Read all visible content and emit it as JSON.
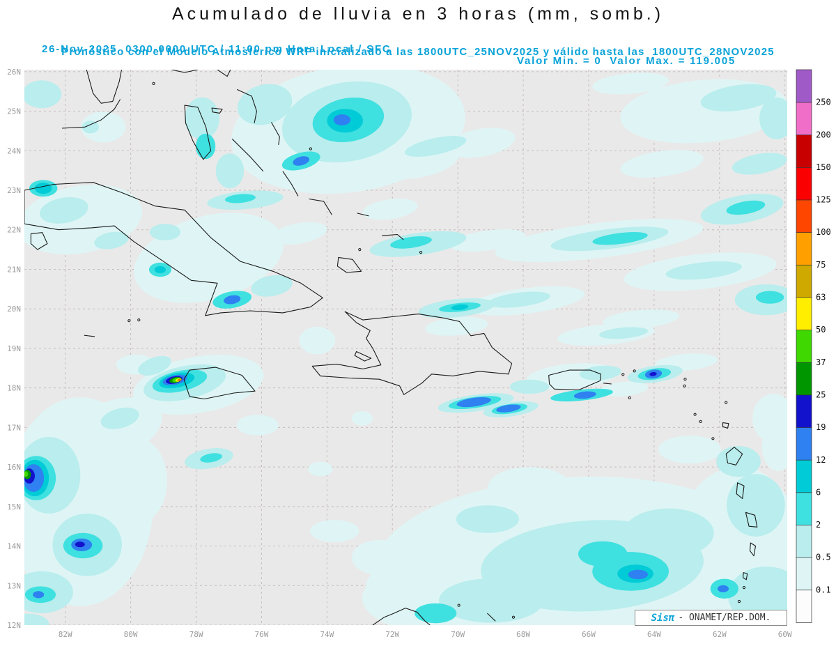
{
  "header": {
    "title": "Acumulado de lluvia en 3 horas (mm, somb.)",
    "line2_left": "26-Nov-2025  0300-0000 UTC / 11:00 pm Hora Local / SFC",
    "line2_right": "Valor Min. = 0  Valor Max. = 119.005",
    "line3": "Pronóstico con el Modelo Atmosferico WRF inicializado a las 1800UTC_25NOV2025 y válido hasta las  1800UTC_28NOV2025"
  },
  "attribution": {
    "brand": "Sisπ",
    "text": "- ONAMET/REP.DOM."
  },
  "colors": {
    "header_accent": "#0aa3d8",
    "title_color": "#141414",
    "axis_label": "#9b9b9b",
    "map_bg": "#e9e9e9",
    "grid": "#c8bcbc",
    "coast": "#1a1a1a"
  },
  "map": {
    "lat_labels": [
      "26N",
      "25N",
      "24N",
      "23N",
      "22N",
      "21N",
      "20N",
      "19N",
      "18N",
      "17N",
      "16N",
      "15N",
      "14N",
      "13N",
      "12N"
    ],
    "lat_values": [
      26,
      25,
      24,
      23,
      22,
      21,
      20,
      19,
      18,
      17,
      16,
      15,
      14,
      13,
      12
    ],
    "lon_labels": [
      "82W",
      "80W",
      "78W",
      "76W",
      "74W",
      "72W",
      "70W",
      "68W",
      "66W",
      "64W",
      "62W",
      "60W"
    ],
    "lon_values": [
      -82,
      -80,
      -78,
      -76,
      -74,
      -72,
      -70,
      -68,
      -66,
      -64,
      -62,
      -60
    ]
  },
  "legend": {
    "units": "mm",
    "tick_labels": [
      "250",
      "200",
      "150",
      "125",
      "100",
      "75",
      "63",
      "50",
      "37",
      "25",
      "19",
      "12",
      "6",
      "2",
      "0.5",
      "0.1"
    ],
    "levels": [
      0.1,
      0.5,
      2,
      6,
      12,
      19,
      25,
      37,
      50,
      63,
      75,
      100,
      125,
      150,
      200,
      250
    ],
    "colors_bottom_to_top": [
      "#fcfcfc",
      "#dff5f5",
      "#baeded",
      "#3fe0e0",
      "#00cbd6",
      "#2f80f0",
      "#1212cc",
      "#009600",
      "#3fd800",
      "#ffee00",
      "#cfa800",
      "#ffa000",
      "#ff4600",
      "#fa0000",
      "#c80000",
      "#f06ec8",
      "#a05ac8"
    ]
  },
  "chart_data": {
    "type": "heatmap",
    "title": "Acumulado de lluvia en 3 horas (mm, somb.)",
    "value_min": 0,
    "value_max": 119.005,
    "units": "mm",
    "extent": {
      "lat": [
        12,
        26
      ],
      "lon": [
        -83.25,
        -60
      ]
    },
    "precip_areas": [
      [
        -73.35,
        24.55,
        3.6,
        1.6,
        -8,
        0.1
      ],
      [
        -73.39,
        24.73,
        2.0,
        1.0,
        -10,
        0.5
      ],
      [
        -73.35,
        24.78,
        1.1,
        0.55,
        -10,
        2
      ],
      [
        -73.45,
        24.76,
        0.55,
        0.3,
        0,
        6
      ],
      [
        -73.54,
        24.78,
        0.26,
        0.14,
        0,
        12
      ],
      [
        -75.9,
        25.17,
        0.85,
        0.5,
        -15,
        0.5
      ],
      [
        -71.22,
        23.76,
        1.28,
        0.44,
        -10,
        0.1
      ],
      [
        -74.79,
        23.74,
        0.6,
        0.21,
        -15,
        2
      ],
      [
        -74.79,
        23.74,
        0.26,
        0.11,
        -15,
        12
      ],
      [
        -62.48,
        25.0,
        2.56,
        0.79,
        -5,
        0.1
      ],
      [
        -61.42,
        25.34,
        1.17,
        0.32,
        -8,
        0.5
      ],
      [
        -60.78,
        23.67,
        0.85,
        0.25,
        -10,
        0.5
      ],
      [
        -63.76,
        23.67,
        1.28,
        0.32,
        -8,
        0.1
      ],
      [
        -64.72,
        25.7,
        1.17,
        0.26,
        -5,
        0.1
      ],
      [
        -60.25,
        24.82,
        0.53,
        0.53,
        0,
        0.5
      ],
      [
        -82.72,
        25.43,
        0.6,
        0.35,
        0,
        0.5
      ],
      [
        -80.84,
        24.6,
        0.68,
        0.39,
        0,
        0.1
      ],
      [
        -81.23,
        24.6,
        0.26,
        0.16,
        0,
        0.5
      ],
      [
        -81.55,
        22.26,
        1.92,
        0.85,
        -10,
        0.1
      ],
      [
        -82.04,
        22.49,
        0.75,
        0.32,
        -10,
        0.5
      ],
      [
        -82.67,
        23.05,
        0.43,
        0.21,
        0,
        2
      ],
      [
        -82.67,
        23.05,
        0.26,
        0.14,
        0,
        6
      ],
      [
        -80.59,
        21.73,
        0.53,
        0.21,
        -10,
        0.5
      ],
      [
        -77.61,
        21.29,
        2.34,
        1.06,
        -15,
        0.1
      ],
      [
        -78.95,
        21.94,
        0.47,
        0.21,
        0,
        0.5
      ],
      [
        -79.1,
        20.99,
        0.34,
        0.18,
        0,
        2
      ],
      [
        -79.1,
        20.99,
        0.17,
        0.09,
        0,
        6
      ],
      [
        -76.9,
        20.23,
        0.6,
        0.21,
        -10,
        2
      ],
      [
        -76.9,
        20.23,
        0.26,
        0.11,
        -10,
        12
      ],
      [
        -75.69,
        20.58,
        0.64,
        0.26,
        -10,
        0.5
      ],
      [
        -76.5,
        22.75,
        1.17,
        0.23,
        -5,
        0.5
      ],
      [
        -76.65,
        22.79,
        0.47,
        0.11,
        -5,
        2
      ],
      [
        -74.84,
        21.91,
        0.85,
        0.26,
        -10,
        0.1
      ],
      [
        -77.82,
        24.82,
        0.53,
        0.53,
        0,
        0.5
      ],
      [
        -77.71,
        24.11,
        0.3,
        0.32,
        0,
        2
      ],
      [
        -76.97,
        23.49,
        0.43,
        0.44,
        0,
        0.5
      ],
      [
        -71.22,
        21.64,
        1.49,
        0.28,
        -8,
        0.5
      ],
      [
        -71.43,
        21.68,
        0.64,
        0.14,
        -8,
        2
      ],
      [
        -69.3,
        24.2,
        1.06,
        0.35,
        -10,
        0.1
      ],
      [
        -70.68,
        24.11,
        0.96,
        0.21,
        -12,
        0.5
      ],
      [
        -72.07,
        22.52,
        0.85,
        0.25,
        -8,
        0.1
      ],
      [
        -69.09,
        21.73,
        1.17,
        0.25,
        -8,
        0.1
      ],
      [
        -65.68,
        21.73,
        3.2,
        0.44,
        -7,
        0.1
      ],
      [
        -65.36,
        21.77,
        1.81,
        0.25,
        -7,
        0.5
      ],
      [
        -65.04,
        21.78,
        0.85,
        0.14,
        -7,
        2
      ],
      [
        -62.59,
        20.94,
        2.34,
        0.44,
        -6,
        0.1
      ],
      [
        -62.48,
        20.97,
        1.17,
        0.21,
        -6,
        0.5
      ],
      [
        -67.92,
        20.2,
        1.81,
        0.32,
        -7,
        0.1
      ],
      [
        -68.13,
        20.23,
        0.96,
        0.18,
        -7,
        0.5
      ],
      [
        -61.31,
        22.52,
        1.28,
        0.35,
        -10,
        0.5
      ],
      [
        -61.2,
        22.56,
        0.6,
        0.16,
        -10,
        2
      ],
      [
        -60.57,
        20.23,
        0.96,
        0.39,
        0,
        0.5
      ],
      [
        -60.46,
        20.29,
        0.43,
        0.16,
        0,
        2
      ],
      [
        -64.4,
        19.74,
        1.17,
        0.23,
        -5,
        0.1
      ],
      [
        -70.04,
        20.02,
        1.17,
        0.23,
        -6,
        0.5
      ],
      [
        -69.94,
        20.04,
        0.64,
        0.11,
        -6,
        2
      ],
      [
        -69.94,
        20.04,
        0.26,
        0.07,
        -6,
        6
      ],
      [
        -65.47,
        19.35,
        1.49,
        0.26,
        -5,
        0.1
      ],
      [
        -64.93,
        19.39,
        0.75,
        0.14,
        -5,
        0.5
      ],
      [
        -63.02,
        18.65,
        0.96,
        0.21,
        -5,
        0.1
      ],
      [
        -74.3,
        19.2,
        0.55,
        0.35,
        0,
        0.1
      ],
      [
        -69.45,
        17.62,
        1.17,
        0.21,
        -8,
        0.5
      ],
      [
        -69.48,
        17.63,
        0.81,
        0.14,
        -8,
        2
      ],
      [
        -69.51,
        17.64,
        0.53,
        0.11,
        -8,
        12
      ],
      [
        -68.38,
        17.46,
        0.85,
        0.18,
        -8,
        0.5
      ],
      [
        -68.42,
        17.47,
        0.55,
        0.12,
        -8,
        2
      ],
      [
        -68.45,
        17.48,
        0.38,
        0.09,
        -8,
        12
      ],
      [
        -67.81,
        18.03,
        0.6,
        0.18,
        0,
        0.5
      ],
      [
        -70.04,
        19.56,
        0.96,
        0.23,
        -5,
        0.1
      ],
      [
        -66.53,
        18.29,
        1.38,
        0.32,
        -5,
        0.1
      ],
      [
        -65.64,
        18.38,
        0.64,
        0.18,
        -5,
        0.5
      ],
      [
        -63.97,
        18.35,
        0.85,
        0.21,
        -8,
        0.5
      ],
      [
        -63.99,
        18.35,
        0.51,
        0.14,
        -8,
        2
      ],
      [
        -64.02,
        18.35,
        0.26,
        0.11,
        -8,
        12
      ],
      [
        -64.03,
        18.35,
        0.11,
        0.05,
        -8,
        19
      ],
      [
        -66.21,
        17.82,
        0.96,
        0.14,
        -6,
        2
      ],
      [
        -66.11,
        17.82,
        0.34,
        0.09,
        -6,
        12
      ],
      [
        -64.93,
        17.97,
        0.75,
        0.18,
        -5,
        0.1
      ],
      [
        -77.93,
        18.08,
        2.02,
        0.71,
        -10,
        0.1
      ],
      [
        -78.35,
        18.13,
        1.28,
        0.42,
        -12,
        0.5
      ],
      [
        -78.5,
        18.17,
        0.85,
        0.26,
        -12,
        2
      ],
      [
        -78.59,
        18.19,
        0.55,
        0.18,
        -12,
        6
      ],
      [
        -78.65,
        18.2,
        0.38,
        0.12,
        -12,
        12
      ],
      [
        -78.67,
        18.2,
        0.26,
        0.09,
        -12,
        19
      ],
      [
        -78.63,
        18.2,
        0.19,
        0.07,
        -12,
        25
      ],
      [
        -78.59,
        18.2,
        0.14,
        0.053,
        -12,
        37
      ],
      [
        -78.54,
        18.2,
        0.096,
        0.039,
        -12,
        50
      ],
      [
        -78.52,
        18.2,
        0.064,
        0.028,
        -12,
        63
      ],
      [
        -78.5,
        18.2,
        0.036,
        0.019,
        -12,
        100
      ],
      [
        -79.27,
        18.56,
        0.53,
        0.21,
        -20,
        0.5
      ],
      [
        -79.84,
        18.59,
        0.6,
        0.25,
        0,
        0.1
      ],
      [
        -81.55,
        15.12,
        2.24,
        2.64,
        0,
        0.1
      ],
      [
        -80.48,
        16.97,
        1.49,
        0.71,
        -20,
        0.1
      ],
      [
        -79.74,
        15.65,
        0.85,
        1.06,
        0,
        0.1
      ],
      [
        -82.5,
        15.79,
        0.96,
        0.97,
        0,
        0.5
      ],
      [
        -81.33,
        14.03,
        1.06,
        0.79,
        0,
        0.5
      ],
      [
        -82.72,
        12.83,
        0.96,
        0.53,
        0,
        0.5
      ],
      [
        -80.33,
        17.23,
        0.6,
        0.25,
        -15,
        0.5
      ],
      [
        -82.89,
        15.72,
        0.6,
        0.56,
        0,
        2
      ],
      [
        -82.93,
        15.72,
        0.43,
        0.46,
        0,
        6
      ],
      [
        -82.97,
        15.72,
        0.32,
        0.35,
        0,
        12
      ],
      [
        -83.1,
        15.77,
        0.17,
        0.19,
        0,
        19
      ],
      [
        -83.16,
        15.81,
        0.11,
        0.12,
        0,
        25
      ],
      [
        -83.2,
        15.82,
        0.064,
        0.07,
        0,
        37
      ],
      [
        -81.46,
        14.01,
        0.6,
        0.32,
        0,
        2
      ],
      [
        -81.5,
        14.03,
        0.32,
        0.16,
        0,
        12
      ],
      [
        -81.55,
        14.04,
        0.15,
        0.07,
        0,
        19
      ],
      [
        -82.76,
        12.77,
        0.47,
        0.21,
        0,
        2
      ],
      [
        -82.82,
        12.77,
        0.17,
        0.09,
        0,
        12
      ],
      [
        -83.14,
        12.03,
        0.64,
        0.26,
        0,
        0.5
      ],
      [
        -66.53,
        13.71,
        5.96,
        2.03,
        -3,
        0.1
      ],
      [
        -61.42,
        13.89,
        1.92,
        2.12,
        0,
        0.1
      ],
      [
        -70.15,
        12.69,
        2.77,
        0.97,
        0,
        0.1
      ],
      [
        -65.89,
        13.5,
        3.41,
        1.15,
        -3,
        0.5
      ],
      [
        -63.55,
        14.33,
        1.38,
        0.62,
        0,
        0.5
      ],
      [
        -68.98,
        12.62,
        1.6,
        0.56,
        0,
        0.5
      ],
      [
        -60.89,
        15.03,
        0.89,
        0.79,
        0,
        0.5
      ],
      [
        -60.57,
        12.74,
        1.17,
        0.74,
        0,
        0.5
      ],
      [
        -64.72,
        13.36,
        1.17,
        0.49,
        0,
        2
      ],
      [
        -65.57,
        13.8,
        0.75,
        0.32,
        0,
        2
      ],
      [
        -64.57,
        13.3,
        0.55,
        0.23,
        0,
        6
      ],
      [
        -64.49,
        13.28,
        0.3,
        0.12,
        0,
        12
      ],
      [
        -70.68,
        12.3,
        0.64,
        0.25,
        0,
        2
      ],
      [
        -61.85,
        12.92,
        0.43,
        0.25,
        0,
        2
      ],
      [
        -61.89,
        12.92,
        0.17,
        0.09,
        0,
        12
      ],
      [
        -67.81,
        15.47,
        1.28,
        0.53,
        0,
        0.1
      ],
      [
        -69.09,
        14.68,
        0.96,
        0.35,
        0,
        0.5
      ],
      [
        -73.77,
        14.38,
        0.75,
        0.28,
        0,
        0.1
      ],
      [
        -72.39,
        13.71,
        0.85,
        0.44,
        0,
        0.1
      ],
      [
        -71.9,
        13.0,
        0.9,
        0.5,
        0,
        0.1
      ],
      [
        -61.42,
        16.14,
        0.68,
        0.39,
        0,
        0.5
      ],
      [
        -62.91,
        16.44,
        0.96,
        0.35,
        0,
        0.1
      ],
      [
        -60.35,
        17.23,
        0.64,
        0.62,
        0,
        0.1
      ],
      [
        -60.2,
        16.5,
        0.5,
        0.6,
        0,
        0.1
      ],
      [
        -77.61,
        16.21,
        0.75,
        0.25,
        -10,
        0.5
      ],
      [
        -77.54,
        16.23,
        0.34,
        0.11,
        -10,
        2
      ],
      [
        -74.2,
        15.95,
        0.38,
        0.18,
        0,
        0.1
      ],
      [
        -72.92,
        17.23,
        0.32,
        0.18,
        0,
        0.1
      ],
      [
        -76.12,
        17.06,
        0.64,
        0.26,
        0,
        0.1
      ]
    ]
  }
}
